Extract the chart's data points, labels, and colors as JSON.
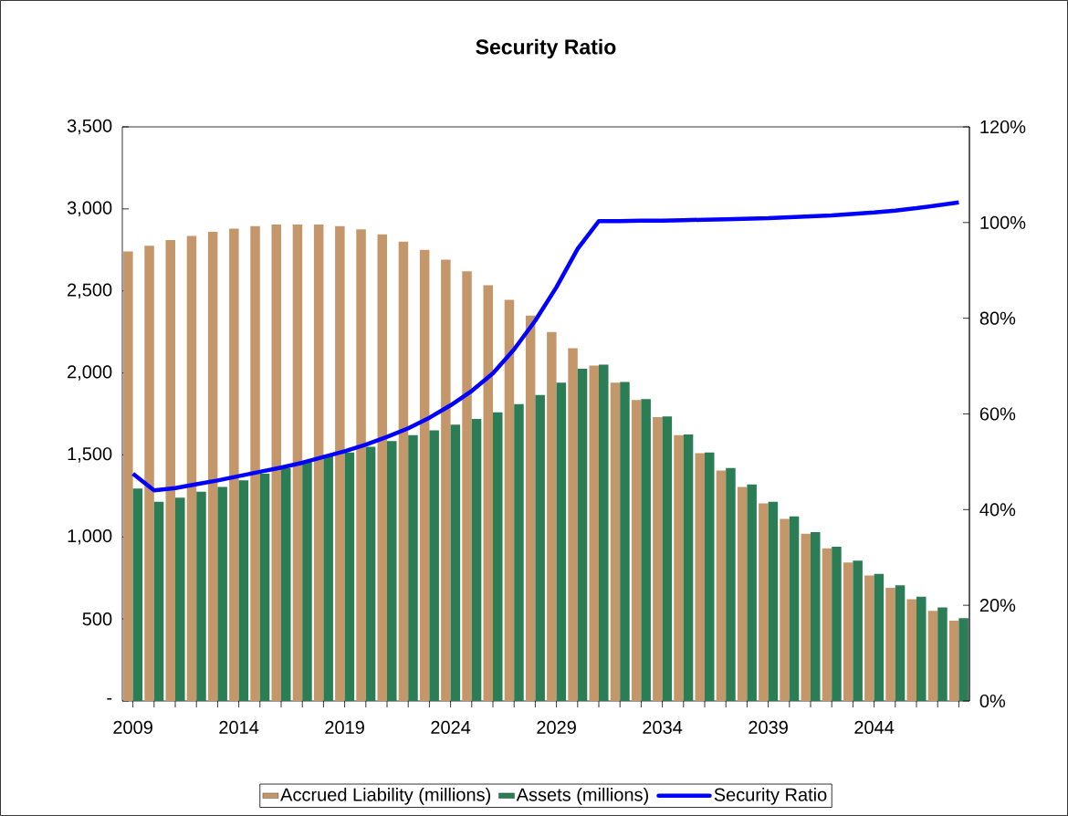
{
  "chart_data": {
    "type": "bar",
    "title": "Security Ratio",
    "categories": [
      "2009",
      null,
      null,
      null,
      null,
      "2014",
      null,
      null,
      null,
      null,
      "2019",
      null,
      null,
      null,
      null,
      "2024",
      null,
      null,
      null,
      null,
      "2029",
      null,
      null,
      null,
      null,
      "2034",
      null,
      null,
      null,
      null,
      "2039",
      null,
      null,
      null,
      null,
      "2044",
      null,
      null,
      null,
      null
    ],
    "series": [
      {
        "name": "Accrued Liability (millions)",
        "color": "#c4976a",
        "values": [
          2740,
          2775,
          2810,
          2835,
          2860,
          2880,
          2895,
          2905,
          2905,
          2905,
          2895,
          2875,
          2845,
          2800,
          2750,
          2690,
          2620,
          2535,
          2445,
          2350,
          2250,
          2150,
          2045,
          1940,
          1835,
          1730,
          1620,
          1510,
          1405,
          1305,
          1205,
          1110,
          1020,
          930,
          845,
          765,
          690,
          620,
          550,
          490
        ]
      },
      {
        "name": "Assets (millions)",
        "color": "#2a7d54",
        "values": [
          1295,
          1215,
          1240,
          1275,
          1305,
          1345,
          1385,
          1420,
          1460,
          1500,
          1515,
          1550,
          1585,
          1620,
          1650,
          1685,
          1720,
          1760,
          1810,
          1865,
          1940,
          2025,
          2050,
          1945,
          1840,
          1735,
          1625,
          1515,
          1420,
          1320,
          1215,
          1125,
          1030,
          940,
          855,
          775,
          705,
          635,
          570,
          505
        ]
      },
      {
        "name": "Security Ratio",
        "type": "line",
        "axis": "y2",
        "color": "#0000ff",
        "values": [
          47.5,
          44,
          44.5,
          45.3,
          46.1,
          47,
          47.9,
          48.8,
          49.8,
          51,
          52.2,
          53.6,
          55.2,
          57,
          59.2,
          61.8,
          64.8,
          68.5,
          73.5,
          79.5,
          86.5,
          94.5,
          100.3,
          100.3,
          100.4,
          100.4,
          100.5,
          100.6,
          100.7,
          100.8,
          100.9,
          101.1,
          101.3,
          101.5,
          101.8,
          102.1,
          102.5,
          103,
          103.6,
          104.2
        ]
      }
    ],
    "ylim": [
      0,
      3500
    ],
    "yticks": [
      {
        "value": 0,
        "label": "-"
      },
      500,
      {
        "value": 1000,
        "label": "1,000"
      },
      {
        "value": 1500,
        "label": "1,500"
      },
      {
        "value": 2000,
        "label": "2,000"
      },
      {
        "value": 2500,
        "label": "2,500"
      },
      {
        "value": 3000,
        "label": "3,000"
      },
      {
        "value": 3500,
        "label": "3,500"
      }
    ],
    "y2lim": [
      0,
      120
    ],
    "y2ticks": [
      {
        "value": 0,
        "label": "0%"
      },
      {
        "value": 20,
        "label": "20%"
      },
      {
        "value": 40,
        "label": "40%"
      },
      {
        "value": 60,
        "label": "60%"
      },
      {
        "value": 80,
        "label": "80%"
      },
      {
        "value": 100,
        "label": "100%"
      },
      {
        "value": 120,
        "label": "120%"
      }
    ],
    "legend": "bottom"
  }
}
